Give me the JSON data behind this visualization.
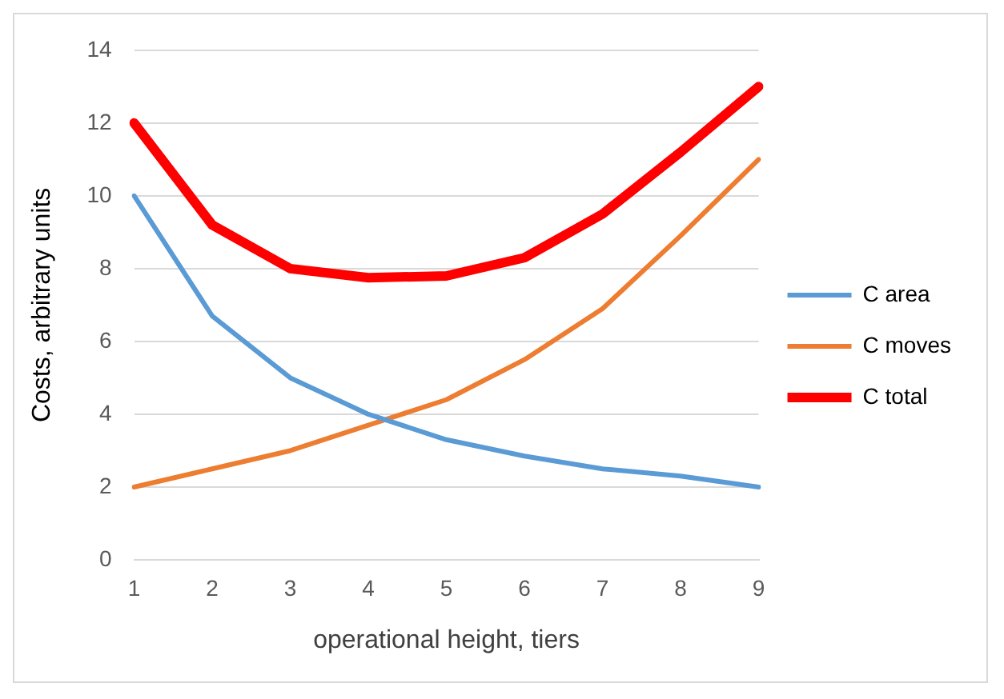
{
  "chart_data": {
    "type": "line",
    "xlabel": "operational height, tiers",
    "ylabel": "Costs, arbitrary units",
    "categories": [
      "1",
      "2",
      "3",
      "4",
      "5",
      "6",
      "7",
      "8",
      "9"
    ],
    "series": [
      {
        "name": "C area",
        "color": "#5b9bd5",
        "values": [
          10,
          6.7,
          5,
          4,
          3.3,
          2.85,
          2.5,
          2.3,
          2
        ]
      },
      {
        "name": "C moves",
        "color": "#ed7d31",
        "values": [
          2,
          2.5,
          3,
          3.7,
          4.4,
          5.5,
          6.9,
          8.9,
          11
        ]
      },
      {
        "name": "C total",
        "color": "#ff0000",
        "values": [
          12,
          9.2,
          8,
          7.75,
          7.8,
          8.3,
          9.5,
          11.2,
          13
        ]
      }
    ],
    "ylim": [
      0,
      14
    ],
    "yticks": [
      0,
      2,
      4,
      6,
      8,
      10,
      12,
      14
    ],
    "grid": "y",
    "legend": "right",
    "marker": "none",
    "line_style": "solid"
  }
}
